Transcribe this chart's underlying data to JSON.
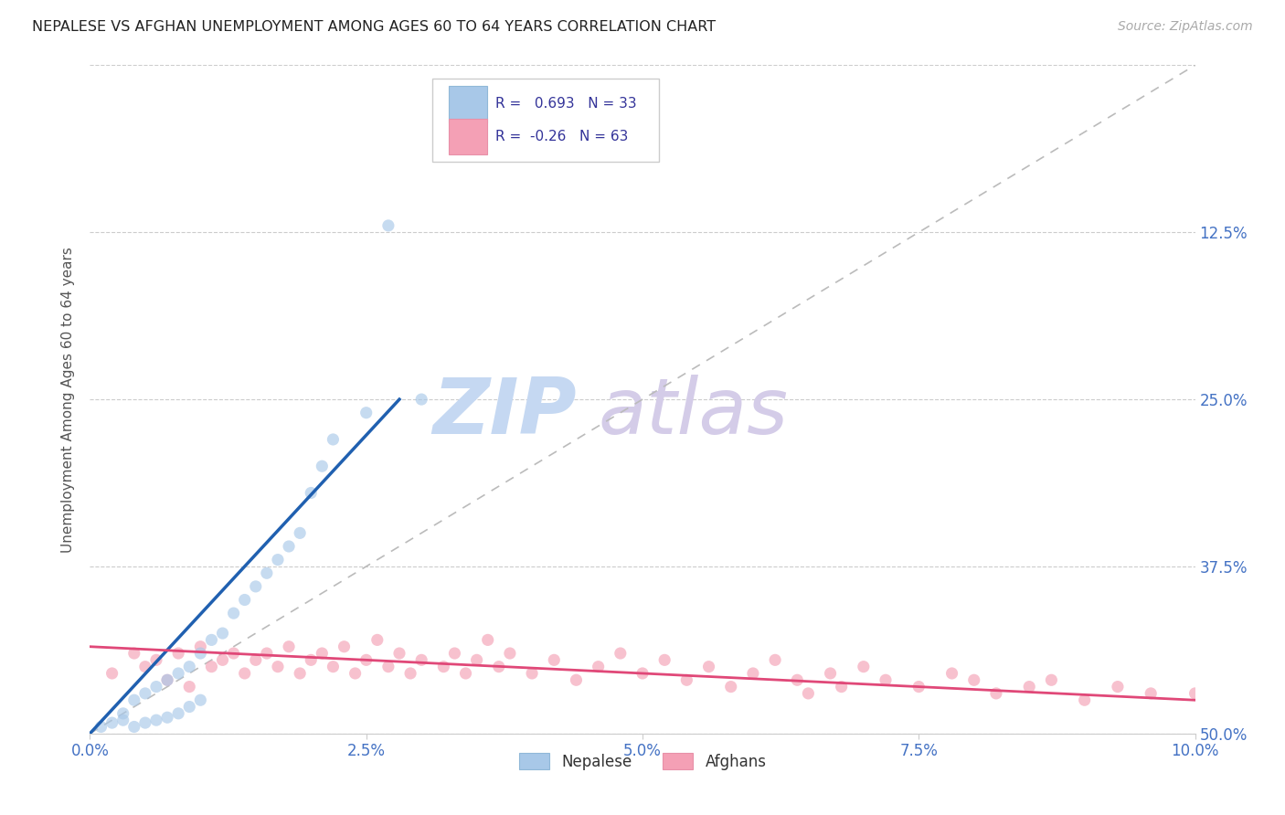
{
  "title": "NEPALESE VS AFGHAN UNEMPLOYMENT AMONG AGES 60 TO 64 YEARS CORRELATION CHART",
  "source": "Source: ZipAtlas.com",
  "xlabel": "",
  "ylabel": "Unemployment Among Ages 60 to 64 years",
  "xlim": [
    0.0,
    0.1
  ],
  "ylim": [
    0.0,
    0.5
  ],
  "xticks": [
    0.0,
    0.025,
    0.05,
    0.075,
    0.1
  ],
  "yticks": [
    0.0,
    0.125,
    0.25,
    0.375,
    0.5
  ],
  "xticklabels": [
    "0.0%",
    "2.5%",
    "5.0%",
    "7.5%",
    "10.0%"
  ],
  "yticklabels_right": [
    "50.0%",
    "37.5%",
    "25.0%",
    "12.5%",
    ""
  ],
  "nepalese_R": 0.693,
  "nepalese_N": 33,
  "afghan_R": -0.26,
  "afghan_N": 63,
  "nepalese_color": "#a8c8e8",
  "afghan_color": "#f4a0b5",
  "nepalese_line_color": "#2060b0",
  "afghan_line_color": "#e04878",
  "dot_size": 90,
  "dot_alpha": 0.65,
  "watermark_zip_color": "#c8d8f0",
  "watermark_atlas_color": "#d0c8e8",
  "background_color": "#ffffff",
  "grid_color": "#cccccc",
  "title_color": "#222222",
  "axis_label_color": "#555555",
  "tick_label_color": "#4472c4",
  "nepalese_scatter_x": [
    0.001,
    0.002,
    0.003,
    0.003,
    0.004,
    0.004,
    0.005,
    0.005,
    0.006,
    0.006,
    0.007,
    0.007,
    0.008,
    0.008,
    0.009,
    0.009,
    0.01,
    0.01,
    0.011,
    0.012,
    0.013,
    0.014,
    0.015,
    0.016,
    0.017,
    0.018,
    0.019,
    0.02,
    0.021,
    0.022,
    0.025,
    0.027,
    0.03
  ],
  "nepalese_scatter_y": [
    0.005,
    0.008,
    0.01,
    0.015,
    0.025,
    0.005,
    0.03,
    0.008,
    0.035,
    0.01,
    0.04,
    0.012,
    0.045,
    0.015,
    0.05,
    0.02,
    0.06,
    0.025,
    0.07,
    0.075,
    0.09,
    0.1,
    0.11,
    0.12,
    0.13,
    0.14,
    0.15,
    0.18,
    0.2,
    0.22,
    0.24,
    0.38,
    0.25
  ],
  "afghan_scatter_x": [
    0.002,
    0.004,
    0.005,
    0.006,
    0.007,
    0.008,
    0.009,
    0.01,
    0.011,
    0.012,
    0.013,
    0.014,
    0.015,
    0.016,
    0.017,
    0.018,
    0.019,
    0.02,
    0.021,
    0.022,
    0.023,
    0.024,
    0.025,
    0.026,
    0.027,
    0.028,
    0.029,
    0.03,
    0.032,
    0.033,
    0.034,
    0.035,
    0.036,
    0.037,
    0.038,
    0.04,
    0.042,
    0.044,
    0.046,
    0.048,
    0.05,
    0.052,
    0.054,
    0.056,
    0.058,
    0.06,
    0.062,
    0.064,
    0.065,
    0.067,
    0.068,
    0.07,
    0.072,
    0.075,
    0.078,
    0.08,
    0.082,
    0.085,
    0.087,
    0.09,
    0.093,
    0.096,
    0.1
  ],
  "afghan_scatter_y": [
    0.045,
    0.06,
    0.05,
    0.055,
    0.04,
    0.06,
    0.035,
    0.065,
    0.05,
    0.055,
    0.06,
    0.045,
    0.055,
    0.06,
    0.05,
    0.065,
    0.045,
    0.055,
    0.06,
    0.05,
    0.065,
    0.045,
    0.055,
    0.07,
    0.05,
    0.06,
    0.045,
    0.055,
    0.05,
    0.06,
    0.045,
    0.055,
    0.07,
    0.05,
    0.06,
    0.045,
    0.055,
    0.04,
    0.05,
    0.06,
    0.045,
    0.055,
    0.04,
    0.05,
    0.035,
    0.045,
    0.055,
    0.04,
    0.03,
    0.045,
    0.035,
    0.05,
    0.04,
    0.035,
    0.045,
    0.04,
    0.03,
    0.035,
    0.04,
    0.025,
    0.035,
    0.03,
    0.03
  ],
  "nep_line_x0": 0.0,
  "nep_line_y0": 0.0,
  "nep_line_x1": 0.028,
  "nep_line_y1": 0.25,
  "afg_line_x0": 0.0,
  "afg_line_y0": 0.065,
  "afg_line_x1": 0.1,
  "afg_line_y1": 0.025
}
